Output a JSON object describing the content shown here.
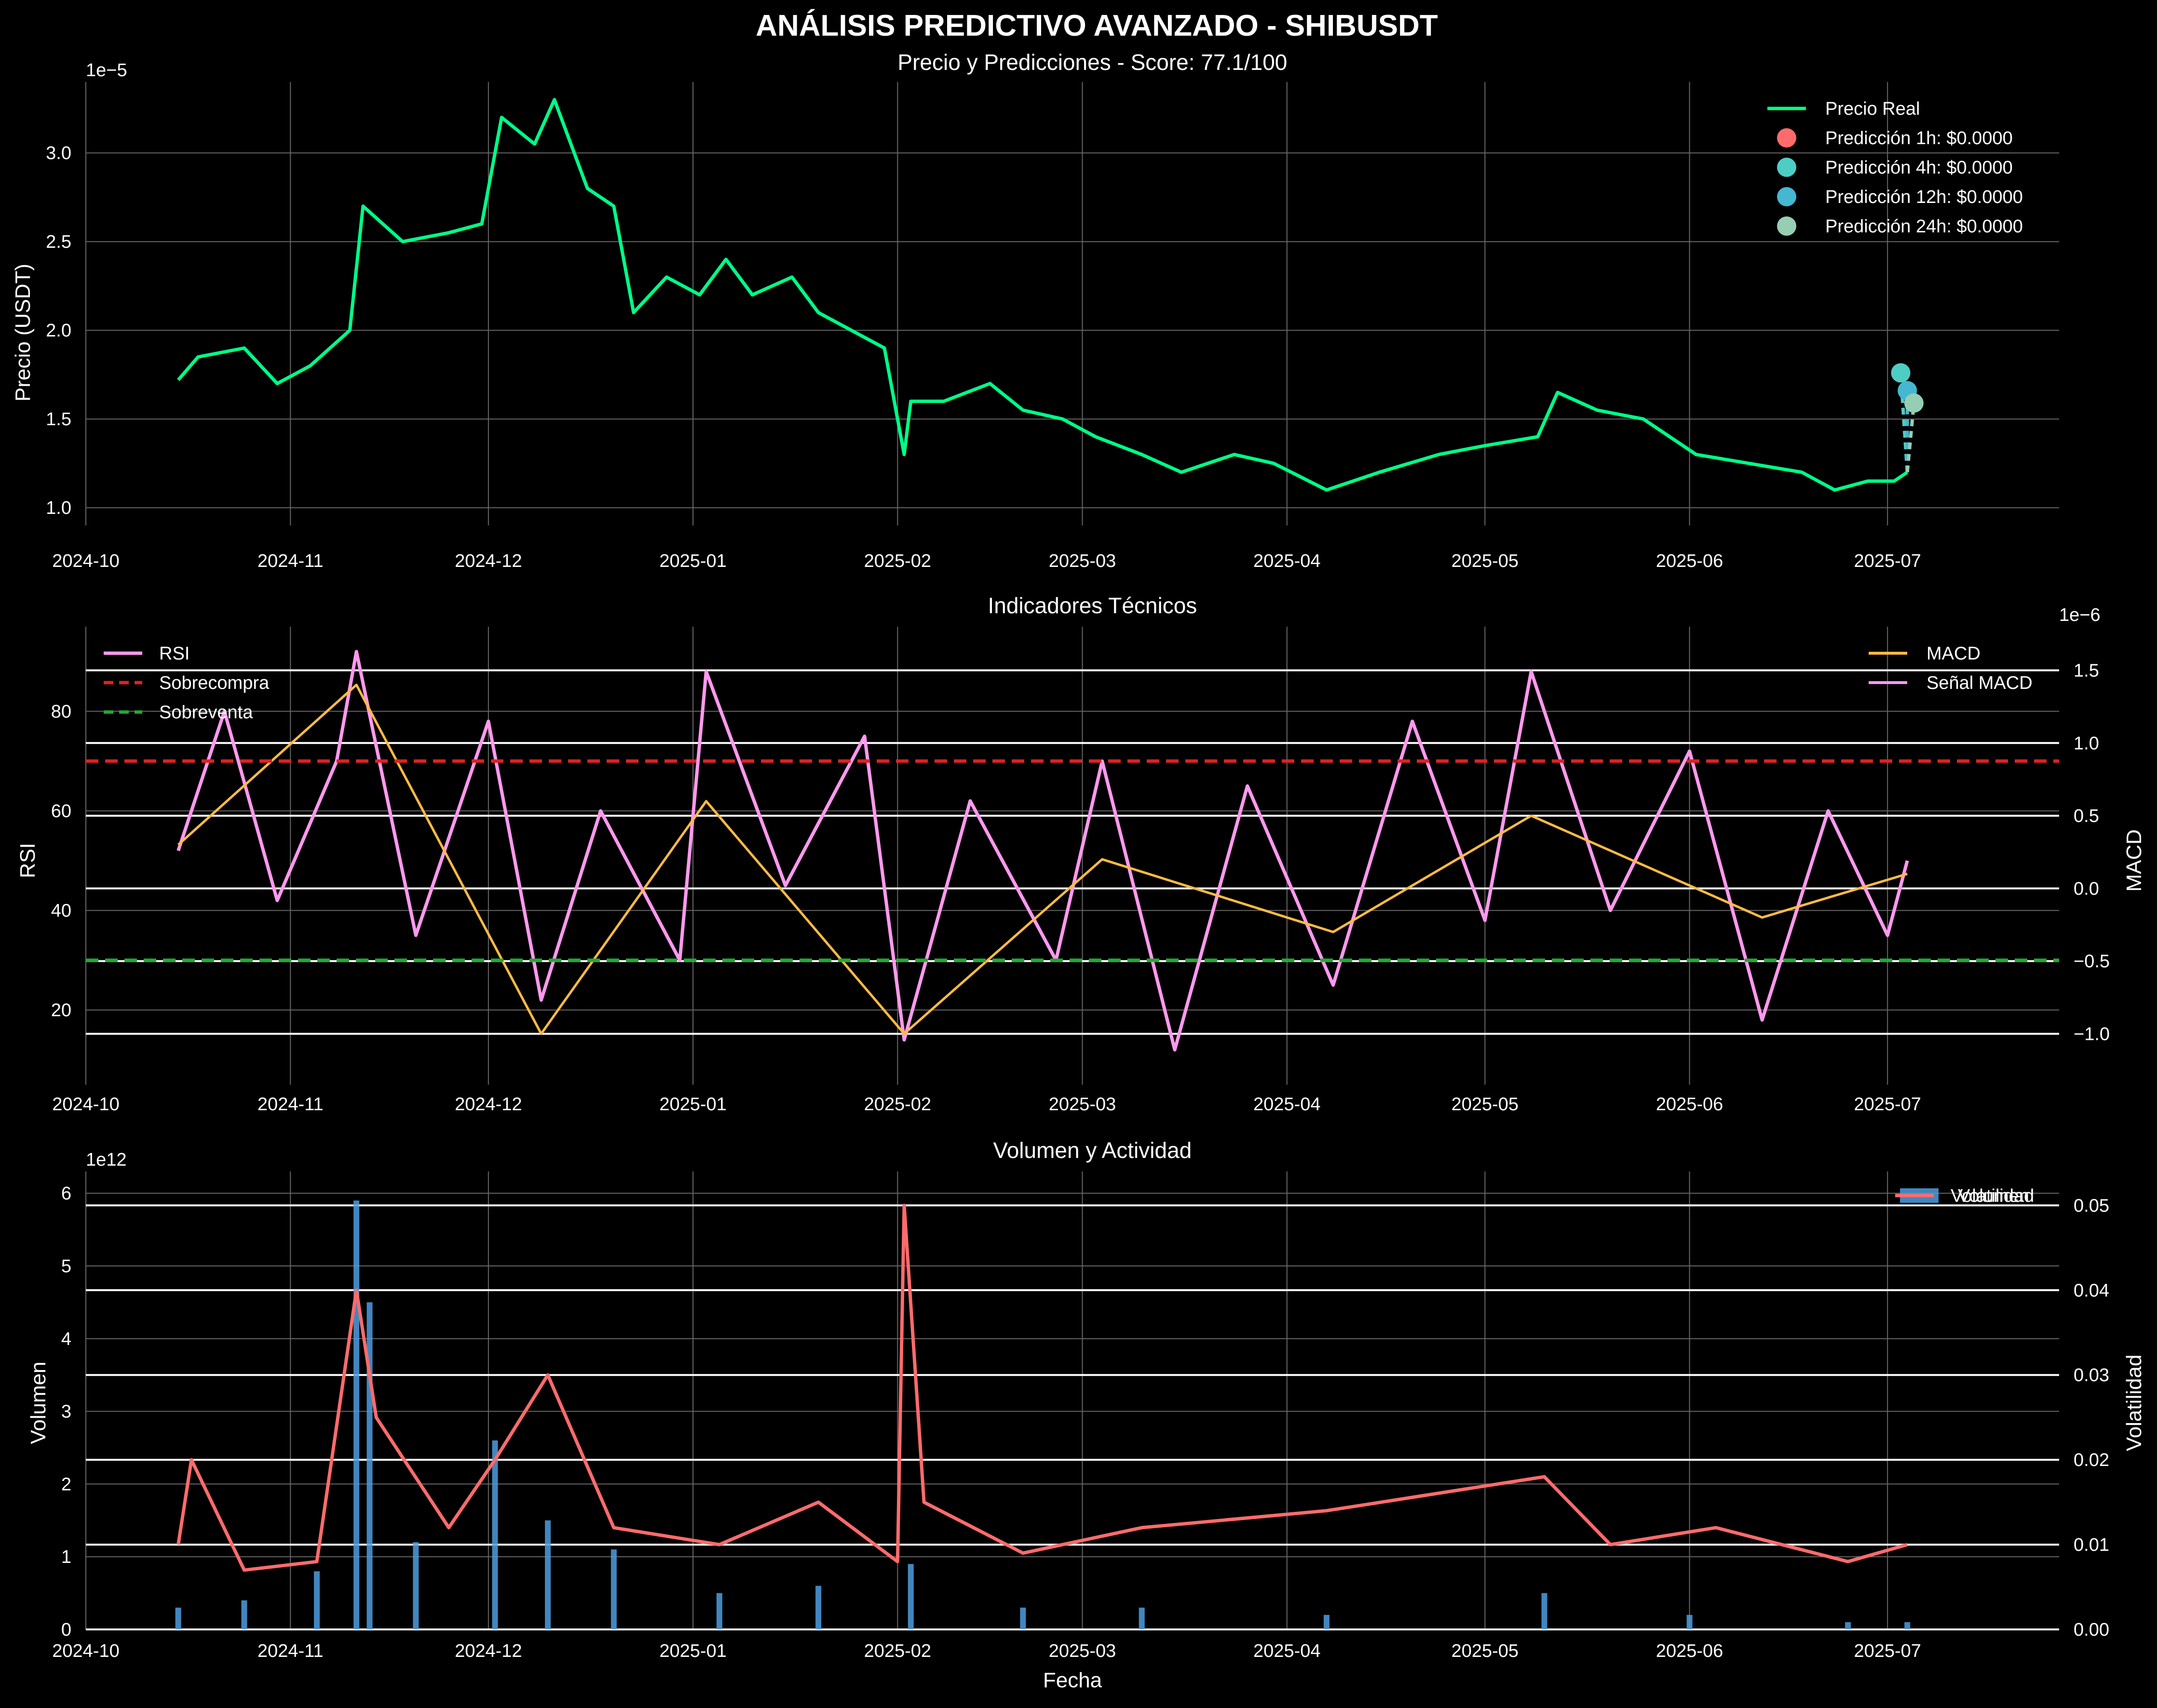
{
  "figure": {
    "title": "  ANÁLISIS PREDICTIVO AVANZADO - SHIBUSDT",
    "colors": {
      "background": "#000000",
      "grid": "#808080",
      "text": "#ffffff"
    }
  },
  "chart_data": [
    {
      "type": "line",
      "title": "  Precio y Predicciones - Score: 77.1/100",
      "xlabel": "",
      "ylabel": "Precio (USDT)",
      "y_offset_label": "1e−5",
      "x_ticks": [
        "2024-10",
        "2024-11",
        "2024-12",
        "2025-01",
        "2025-02",
        "2025-03",
        "2025-04",
        "2025-05",
        "2025-06",
        "2025-07"
      ],
      "y_ticks": [
        "1.0",
        "1.5",
        "2.0",
        "2.5",
        "3.0"
      ],
      "xlim": [
        "2024-10-01",
        "2025-07-27"
      ],
      "ylim": [
        0.9,
        3.4
      ],
      "y_scale_note": "values x 1e-5",
      "legend_position": "top-right",
      "grid": true,
      "series": [
        {
          "name": "Precio Real",
          "color": "#00ff88",
          "x": [
            "2024-10-15",
            "2024-10-18",
            "2024-10-25",
            "2024-10-30",
            "2024-11-04",
            "2024-11-10",
            "2024-11-12",
            "2024-11-18",
            "2024-11-25",
            "2024-11-30",
            "2024-12-03",
            "2024-12-08",
            "2024-12-11",
            "2024-12-16",
            "2024-12-20",
            "2024-12-23",
            "2024-12-28",
            "2025-01-02",
            "2025-01-06",
            "2025-01-10",
            "2025-01-16",
            "2025-01-20",
            "2025-01-25",
            "2025-01-30",
            "2025-02-02",
            "2025-02-03",
            "2025-02-08",
            "2025-02-15",
            "2025-02-20",
            "2025-02-26",
            "2025-03-03",
            "2025-03-10",
            "2025-03-16",
            "2025-03-24",
            "2025-03-30",
            "2025-04-07",
            "2025-04-15",
            "2025-04-24",
            "2025-05-01",
            "2025-05-09",
            "2025-05-12",
            "2025-05-18",
            "2025-05-25",
            "2025-06-02",
            "2025-06-10",
            "2025-06-18",
            "2025-06-23",
            "2025-06-28",
            "2025-07-02",
            "2025-07-04"
          ],
          "y": [
            1.72,
            1.85,
            1.9,
            1.7,
            1.8,
            2.0,
            2.7,
            2.5,
            2.55,
            2.6,
            3.2,
            3.05,
            3.3,
            2.8,
            2.7,
            2.1,
            2.3,
            2.2,
            2.4,
            2.2,
            2.3,
            2.1,
            2.0,
            1.9,
            1.3,
            1.6,
            1.6,
            1.7,
            1.55,
            1.5,
            1.4,
            1.3,
            1.2,
            1.3,
            1.25,
            1.1,
            1.2,
            1.3,
            1.35,
            1.4,
            1.65,
            1.55,
            1.5,
            1.3,
            1.25,
            1.2,
            1.1,
            1.15,
            1.15,
            1.2
          ]
        },
        {
          "name": "Predicción 1h: $0.0000",
          "color": "#ff6b6b",
          "x": [
            "2025-07-03"
          ],
          "y": [
            1.76
          ]
        },
        {
          "name": "Predicción 4h: $0.0000",
          "color": "#4ecdc4",
          "x": [
            "2025-07-03"
          ],
          "y": [
            1.76
          ]
        },
        {
          "name": "Predicción 12h: $0.0000",
          "color": "#45b7d1",
          "x": [
            "2025-07-04"
          ],
          "y": [
            1.66
          ]
        },
        {
          "name": "Predicción 24h: $0.0000",
          "color": "#96ceb4",
          "x": [
            "2025-07-05"
          ],
          "y": [
            1.59
          ]
        }
      ]
    },
    {
      "type": "line",
      "title": "  Indicadores Técnicos",
      "xlabel": "",
      "ylabel": "RSI",
      "ylabel_right": "MACD",
      "y_offset_label_right": "1e−6",
      "x_ticks": [
        "2024-10",
        "2024-11",
        "2024-12",
        "2025-01",
        "2025-02",
        "2025-03",
        "2025-04",
        "2025-05",
        "2025-06",
        "2025-07"
      ],
      "y_ticks": [
        "20",
        "40",
        "60",
        "80"
      ],
      "y_ticks_right": [
        "−1.0",
        "−0.5",
        "0.0",
        "0.5",
        "1.0",
        "1.5"
      ],
      "ylim": [
        5,
        97
      ],
      "ylim_right": [
        -1.35,
        1.8
      ],
      "legend_left": "top-left",
      "legend_right": "top-right",
      "grid": true,
      "series": [
        {
          "name": "RSI",
          "color": "#ff99ee",
          "x": [
            "2024-10-15",
            "2024-10-22",
            "2024-10-30",
            "2024-11-08",
            "2024-11-11",
            "2024-11-20",
            "2024-12-01",
            "2024-12-09",
            "2024-12-18",
            "2024-12-30",
            "2025-01-03",
            "2025-01-15",
            "2025-01-27",
            "2025-02-02",
            "2025-02-12",
            "2025-02-25",
            "2025-03-04",
            "2025-03-15",
            "2025-03-26",
            "2025-04-08",
            "2025-04-20",
            "2025-05-01",
            "2025-05-08",
            "2025-05-20",
            "2025-06-01",
            "2025-06-12",
            "2025-06-22",
            "2025-07-01",
            "2025-07-04"
          ],
          "y": [
            52,
            80,
            42,
            70,
            92,
            35,
            78,
            22,
            60,
            30,
            88,
            45,
            75,
            14,
            62,
            30,
            70,
            12,
            65,
            25,
            78,
            38,
            88,
            40,
            72,
            18,
            60,
            35,
            50
          ]
        },
        {
          "name": "Sobrecompra",
          "color": "#dd2222",
          "dashed": true,
          "value": 70
        },
        {
          "name": "Sobreventa",
          "color": "#22aa33",
          "dashed": true,
          "value": 30
        },
        {
          "name": "MACD",
          "color": "#ffbb44",
          "x": [
            "2024-10-15",
            "2024-11-11",
            "2024-12-09",
            "2025-01-03",
            "2025-02-02",
            "2025-03-04",
            "2025-04-08",
            "2025-05-08",
            "2025-06-12",
            "2025-07-04"
          ],
          "y": [
            0.3,
            1.4,
            -1.0,
            0.6,
            -1.0,
            0.2,
            -0.3,
            0.5,
            -0.2,
            0.1
          ]
        },
        {
          "name": "Señal MACD",
          "color": "#ff99ee",
          "x": [],
          "y": []
        }
      ]
    },
    {
      "type": "bar",
      "title": "  Volumen y Actividad",
      "xlabel": "Fecha",
      "ylabel": "Volumen",
      "ylabel_right": "Volatilidad",
      "y_offset_label": "1e12",
      "x_ticks": [
        "2024-10",
        "2024-11",
        "2024-12",
        "2025-01",
        "2025-02",
        "2025-03",
        "2025-04",
        "2025-05",
        "2025-06",
        "2025-07"
      ],
      "y_ticks": [
        "0",
        "1",
        "2",
        "3",
        "4",
        "5",
        "6"
      ],
      "y_ticks_right": [
        "0.00",
        "0.01",
        "0.02",
        "0.03",
        "0.04",
        "0.05"
      ],
      "ylim": [
        0,
        6.3
      ],
      "ylim_right": [
        0,
        0.054
      ],
      "legend_position": "top-right",
      "grid": true,
      "series": [
        {
          "name": "Volumen",
          "color": "#4d9de0",
          "x": [
            "2024-10-15",
            "2024-10-25",
            "2024-11-05",
            "2024-11-11",
            "2024-11-13",
            "2024-11-20",
            "2024-12-02",
            "2024-12-10",
            "2024-12-20",
            "2025-01-05",
            "2025-01-20",
            "2025-02-03",
            "2025-02-20",
            "2025-03-10",
            "2025-04-07",
            "2025-05-10",
            "2025-06-01",
            "2025-06-25",
            "2025-07-04"
          ],
          "y": [
            0.3,
            0.4,
            0.8,
            5.9,
            4.5,
            1.2,
            2.6,
            1.5,
            1.1,
            0.5,
            0.6,
            0.9,
            0.3,
            0.3,
            0.2,
            0.5,
            0.2,
            0.1,
            0.1
          ]
        },
        {
          "name": "Volatilidad",
          "color": "#ff6b6b",
          "x": [
            "2024-10-15",
            "2024-10-17",
            "2024-10-25",
            "2024-11-05",
            "2024-11-11",
            "2024-11-14",
            "2024-11-25",
            "2024-12-02",
            "2024-12-10",
            "2024-12-20",
            "2025-01-05",
            "2025-01-20",
            "2025-02-01",
            "2025-02-02",
            "2025-02-05",
            "2025-02-20",
            "2025-03-10",
            "2025-04-07",
            "2025-05-10",
            "2025-05-20",
            "2025-06-05",
            "2025-06-25",
            "2025-07-04"
          ],
          "y": [
            0.01,
            0.02,
            0.007,
            0.008,
            0.04,
            0.025,
            0.012,
            0.02,
            0.03,
            0.012,
            0.01,
            0.015,
            0.008,
            0.05,
            0.015,
            0.009,
            0.012,
            0.014,
            0.018,
            0.01,
            0.012,
            0.008,
            0.01
          ]
        }
      ]
    }
  ]
}
